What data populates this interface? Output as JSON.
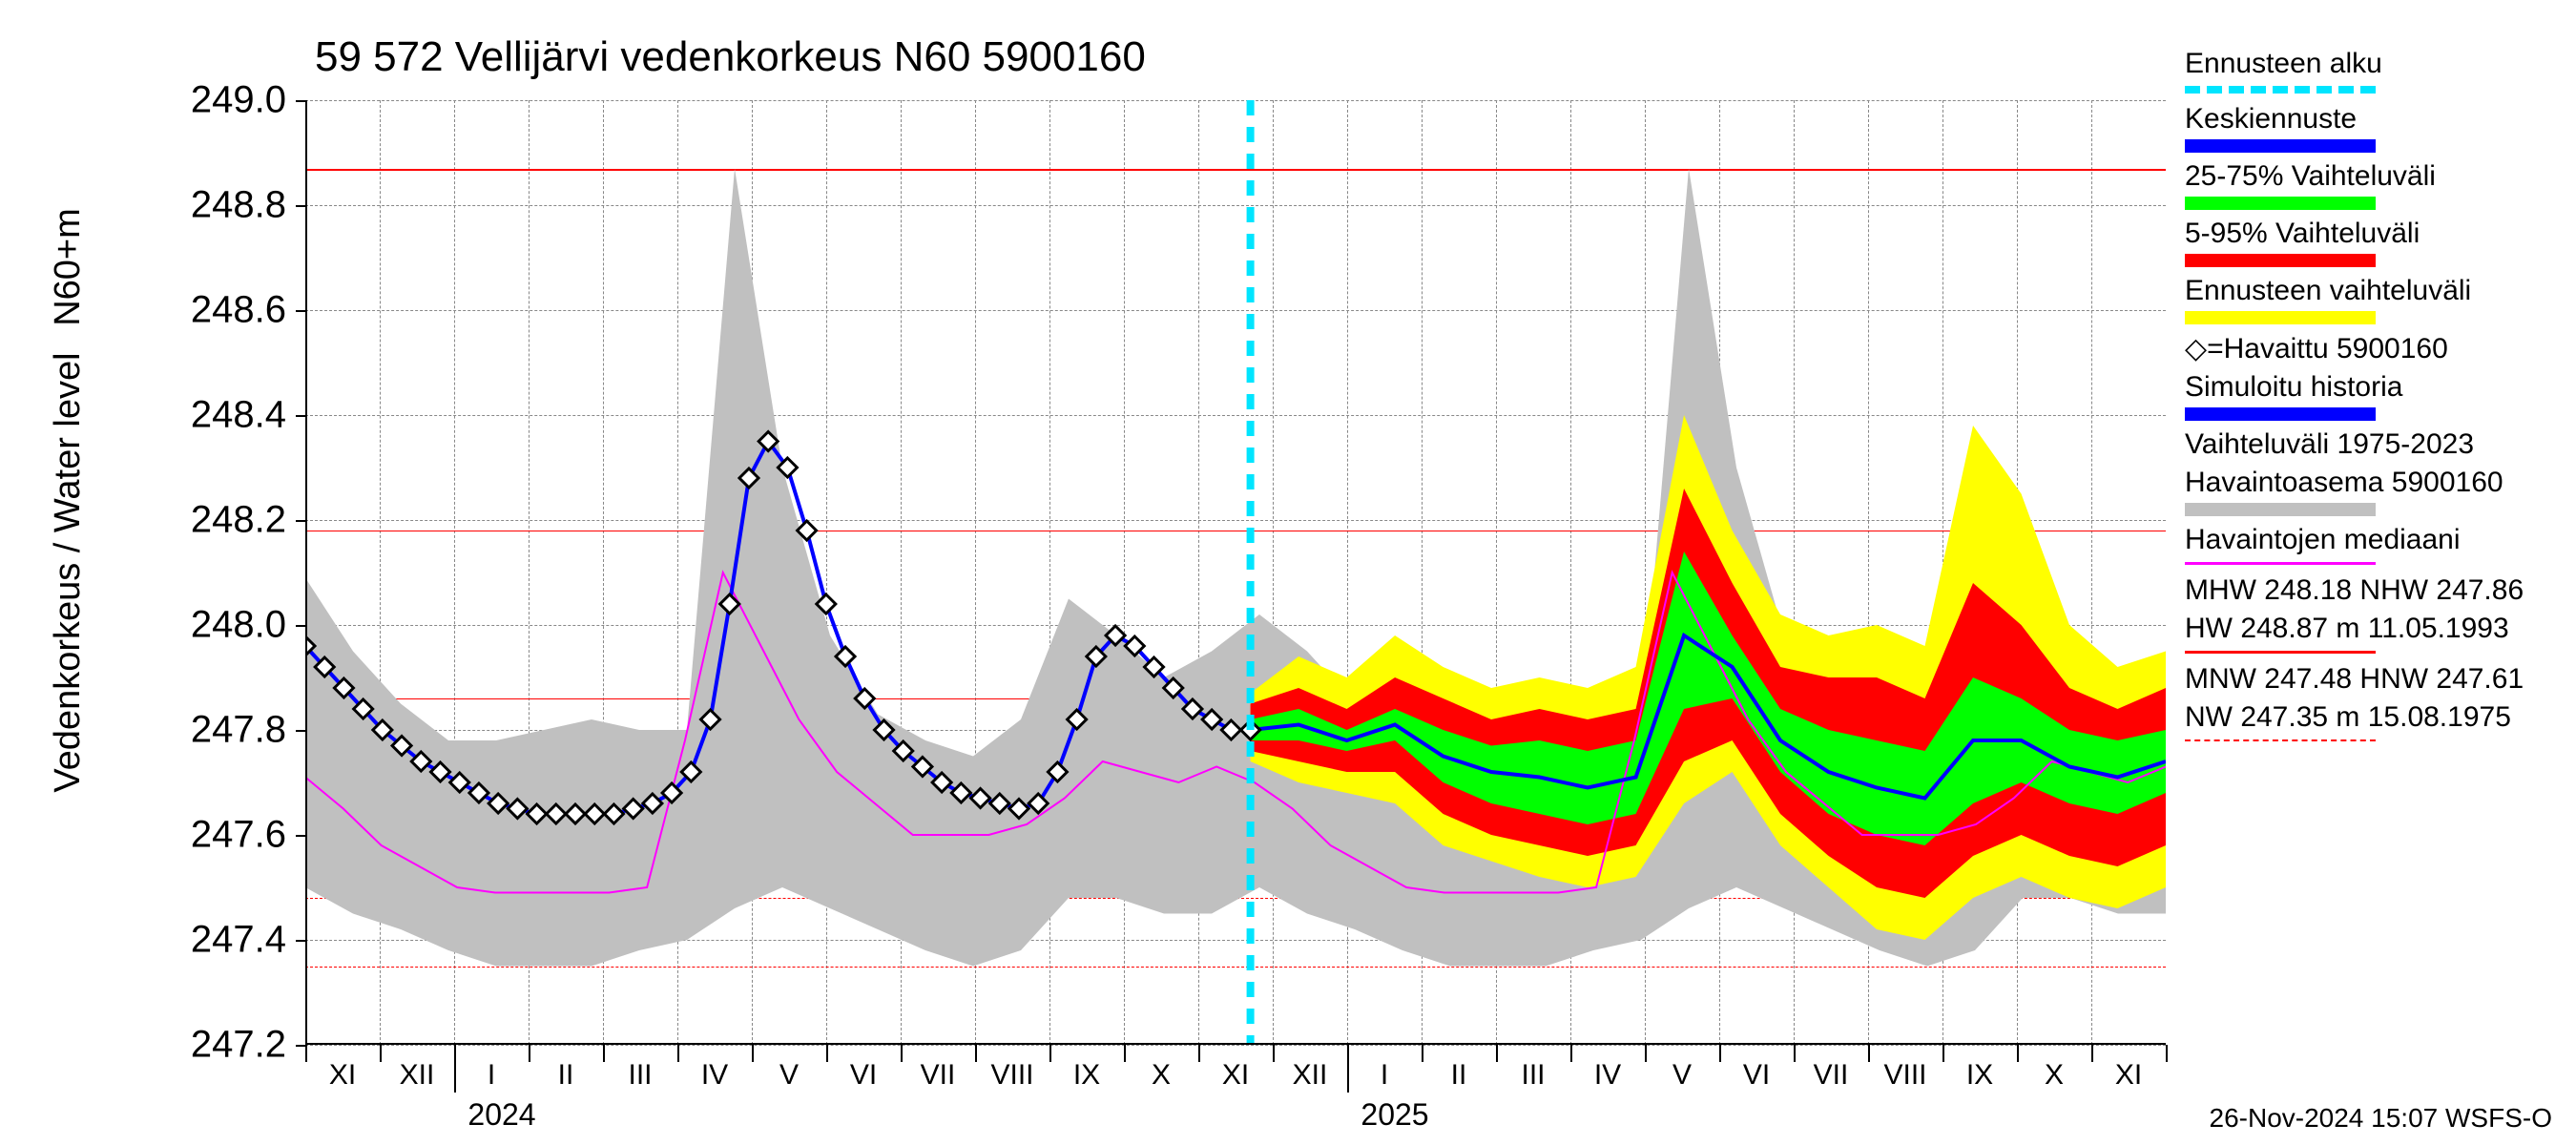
{
  "title": "59 572 Vellijärvi vedenkorkeus N60 5900160",
  "y_label": "Vedenkorkeus / Water level",
  "y_label_upper": "N60+m",
  "footer": "26-Nov-2024 15:07 WSFS-O",
  "chart": {
    "type": "line",
    "ylim": [
      247.2,
      249.0
    ],
    "yticks": [
      247.2,
      247.4,
      247.6,
      247.8,
      248.0,
      248.2,
      248.4,
      248.6,
      248.8,
      249.0
    ],
    "xticks_months": [
      "XI",
      "XII",
      "I",
      "II",
      "III",
      "IV",
      "V",
      "VI",
      "VII",
      "VIII",
      "IX",
      "X",
      "XI",
      "XII",
      "I",
      "II",
      "III",
      "IV",
      "V",
      "VI",
      "VII",
      "VIII",
      "IX",
      "X",
      "XI"
    ],
    "x_years": [
      {
        "label": "2024",
        "month_index": 2
      },
      {
        "label": "2025",
        "month_index": 14
      }
    ],
    "forecast_start_index": 12.7,
    "background_color": "#ffffff",
    "grid_color": "#888888",
    "title_fontsize": 44,
    "label_fontsize": 38,
    "tick_fontsize": 40,
    "reference_lines": [
      {
        "value": 248.87,
        "color": "#ff0000",
        "dash": false,
        "width": 2
      },
      {
        "value": 248.18,
        "color": "#ff0000",
        "dash": false,
        "width": 1.5
      },
      {
        "value": 247.86,
        "color": "#ff0000",
        "dash": false,
        "width": 1.5
      },
      {
        "value": 247.61,
        "color": "#ff0000",
        "dash": true,
        "width": 1.5
      },
      {
        "value": 247.48,
        "color": "#ff0000",
        "dash": true,
        "width": 1.5
      },
      {
        "value": 247.35,
        "color": "#ff0000",
        "dash": true,
        "width": 1.5
      }
    ],
    "range_band": {
      "color": "#c0c0c0",
      "upper": [
        248.09,
        247.95,
        247.85,
        247.78,
        247.78,
        247.8,
        247.82,
        247.8,
        247.8,
        248.87,
        248.3,
        247.98,
        247.83,
        247.78,
        247.75,
        247.82,
        248.05,
        247.98,
        247.9,
        247.95,
        248.02,
        247.95,
        247.85,
        247.78,
        247.78,
        247.8,
        247.82,
        247.8,
        247.8,
        248.87,
        248.3,
        247.98,
        247.83,
        247.78,
        247.75,
        247.82,
        248.05,
        247.98,
        247.9,
        247.95
      ],
      "lower": [
        247.5,
        247.45,
        247.42,
        247.38,
        247.35,
        247.35,
        247.35,
        247.38,
        247.4,
        247.46,
        247.5,
        247.46,
        247.42,
        247.38,
        247.35,
        247.38,
        247.48,
        247.48,
        247.45,
        247.45,
        247.5,
        247.45,
        247.42,
        247.38,
        247.35,
        247.35,
        247.35,
        247.38,
        247.4,
        247.46,
        247.5,
        247.46,
        247.42,
        247.38,
        247.35,
        247.38,
        247.48,
        247.48,
        247.45,
        247.45
      ]
    },
    "yellow_band": {
      "color": "#ffff00",
      "upper": [
        247.87,
        247.94,
        247.9,
        247.98,
        247.92,
        247.88,
        247.9,
        247.88,
        247.92,
        248.4,
        248.18,
        248.02,
        247.98,
        248.0,
        247.96,
        248.38,
        248.25,
        248.0,
        247.92,
        247.95
      ],
      "lower": [
        247.74,
        247.7,
        247.68,
        247.66,
        247.58,
        247.55,
        247.52,
        247.5,
        247.52,
        247.66,
        247.72,
        247.58,
        247.5,
        247.42,
        247.4,
        247.48,
        247.52,
        247.48,
        247.46,
        247.5
      ]
    },
    "red_band": {
      "color": "#ff0000",
      "upper": [
        247.85,
        247.88,
        247.84,
        247.9,
        247.86,
        247.82,
        247.84,
        247.82,
        247.84,
        248.26,
        248.08,
        247.92,
        247.9,
        247.9,
        247.86,
        248.08,
        248.0,
        247.88,
        247.84,
        247.88
      ],
      "lower": [
        247.76,
        247.74,
        247.72,
        247.72,
        247.64,
        247.6,
        247.58,
        247.56,
        247.58,
        247.74,
        247.78,
        247.64,
        247.56,
        247.5,
        247.48,
        247.56,
        247.6,
        247.56,
        247.54,
        247.58
      ]
    },
    "green_band": {
      "color": "#00ff00",
      "upper": [
        247.82,
        247.84,
        247.8,
        247.84,
        247.8,
        247.77,
        247.78,
        247.76,
        247.78,
        248.14,
        247.98,
        247.84,
        247.8,
        247.78,
        247.76,
        247.9,
        247.86,
        247.8,
        247.78,
        247.8
      ],
      "lower": [
        247.78,
        247.78,
        247.76,
        247.78,
        247.7,
        247.66,
        247.64,
        247.62,
        247.64,
        247.84,
        247.86,
        247.72,
        247.64,
        247.6,
        247.58,
        247.66,
        247.7,
        247.66,
        247.64,
        247.68
      ]
    },
    "median_line": {
      "color": "#ff00ff",
      "width": 2,
      "values": [
        247.71,
        247.65,
        247.58,
        247.54,
        247.5,
        247.49,
        247.49,
        247.49,
        247.49,
        247.5,
        247.78,
        248.1,
        247.96,
        247.82,
        247.72,
        247.66,
        247.6,
        247.6,
        247.6,
        247.62,
        247.67,
        247.74,
        247.72,
        247.7,
        247.73,
        247.7,
        247.65,
        247.58,
        247.54,
        247.5,
        247.49,
        247.49,
        247.49,
        247.49,
        247.5,
        247.78,
        248.1,
        247.96,
        247.82,
        247.72,
        247.66,
        247.6,
        247.6,
        247.6,
        247.62,
        247.67,
        247.74,
        247.72,
        247.7,
        247.73
      ]
    },
    "forecast_line": {
      "color": "#0000ff",
      "width": 4,
      "values": [
        247.8,
        247.81,
        247.78,
        247.81,
        247.75,
        247.72,
        247.71,
        247.69,
        247.71,
        247.98,
        247.92,
        247.78,
        247.72,
        247.69,
        247.67,
        247.78,
        247.78,
        247.73,
        247.71,
        247.74
      ]
    },
    "observed": {
      "color": "#000000",
      "marker": "diamond",
      "marker_size": 10,
      "values": [
        247.96,
        247.92,
        247.88,
        247.84,
        247.8,
        247.77,
        247.74,
        247.72,
        247.7,
        247.68,
        247.66,
        247.65,
        247.64,
        247.64,
        247.64,
        247.64,
        247.64,
        247.65,
        247.66,
        247.68,
        247.72,
        247.82,
        248.04,
        248.28,
        248.35,
        248.3,
        248.18,
        248.04,
        247.94,
        247.86,
        247.8,
        247.76,
        247.73,
        247.7,
        247.68,
        247.67,
        247.66,
        247.65,
        247.66,
        247.72,
        247.82,
        247.94,
        247.98,
        247.96,
        247.92,
        247.88,
        247.84,
        247.82,
        247.8,
        247.8
      ]
    }
  },
  "legend": {
    "items": [
      {
        "label": "Ennusteen alku",
        "type": "dashed",
        "color": "#00e5ff",
        "width": 8
      },
      {
        "label": "Keskiennuste",
        "type": "thick",
        "color": "#0000ff"
      },
      {
        "label": "25-75% Vaihteluväli",
        "type": "thick",
        "color": "#00ff00"
      },
      {
        "label": "5-95% Vaihteluväli",
        "type": "thick",
        "color": "#ff0000"
      },
      {
        "label": "Ennusteen vaihteluväli",
        "type": "thick",
        "color": "#ffff00"
      },
      {
        "label": "◇=Havaittu 5900160",
        "type": "text",
        "color": "#000000"
      },
      {
        "label": "Simuloitu historia",
        "type": "thick",
        "color": "#0000ff"
      },
      {
        "label": "Vaihteluväli 1975-2023",
        "type": "text",
        "color": "#000000"
      },
      {
        "label": " Havaintoasema 5900160",
        "type": "thick",
        "color": "#c0c0c0"
      },
      {
        "label": "Havaintojen mediaani",
        "type": "thin",
        "color": "#ff00ff"
      },
      {
        "label": "MHW 248.18 NHW 247.86",
        "type": "text",
        "color": "#000000"
      },
      {
        "label": "HW 248.87 m 11.05.1993",
        "type": "thin",
        "color": "#ff0000"
      },
      {
        "label": "MNW 247.48 HNW 247.61",
        "type": "text",
        "color": "#000000"
      },
      {
        "label": "NW 247.35 m 15.08.1975",
        "type": "dashed-thin",
        "color": "#ff0000"
      }
    ]
  }
}
